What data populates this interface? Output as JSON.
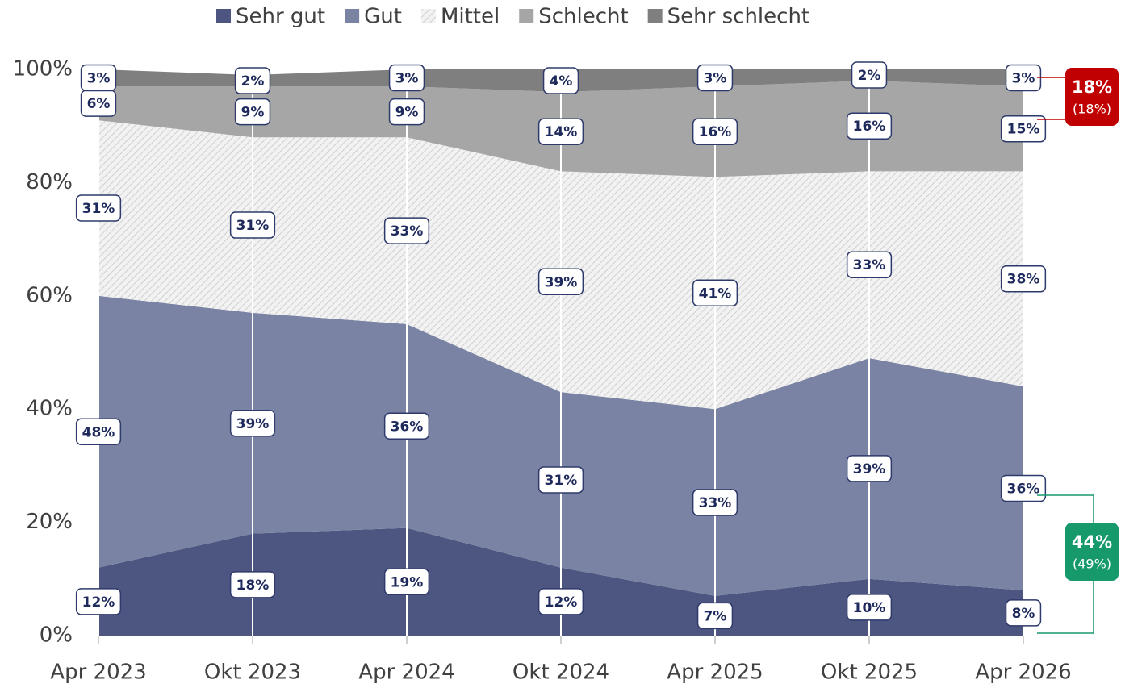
{
  "chart_data": {
    "type": "stacked_area",
    "categories": [
      "Apr 2023",
      "Okt 2023",
      "Apr 2024",
      "Okt 2024",
      "Apr 2025",
      "Okt 2025",
      "Apr 2026"
    ],
    "series": [
      {
        "name": "Sehr gut",
        "color": "#4d5680",
        "values": [
          12,
          18,
          19,
          12,
          7,
          10,
          8
        ],
        "value_labels": [
          "12%",
          "18%",
          "19%",
          "12%",
          "7%",
          "10%",
          "8%"
        ]
      },
      {
        "name": "Gut",
        "color": "#7a83a3",
        "values": [
          48,
          39,
          36,
          31,
          33,
          39,
          36
        ],
        "value_labels": [
          "48%",
          "39%",
          "36%",
          "31%",
          "33%",
          "39%",
          "36%"
        ]
      },
      {
        "name": "Mittel",
        "color": "hatch",
        "values": [
          31,
          31,
          33,
          39,
          41,
          33,
          38
        ],
        "value_labels": [
          "31%",
          "31%",
          "33%",
          "39%",
          "41%",
          "33%",
          "38%"
        ]
      },
      {
        "name": "Schlecht",
        "color": "#a6a6a6",
        "values": [
          6,
          9,
          9,
          14,
          16,
          16,
          15
        ],
        "value_labels": [
          "6%",
          "9%",
          "9%",
          "14%",
          "16%",
          "16%",
          "15%"
        ]
      },
      {
        "name": "Sehr schlecht",
        "color": "#7f7f7f",
        "values": [
          3,
          2,
          3,
          4,
          3,
          2,
          3
        ],
        "value_labels": [
          "3%",
          "2%",
          "3%",
          "4%",
          "3%",
          "2%",
          "3%"
        ]
      }
    ],
    "ylim": [
      0,
      100
    ],
    "yticks": [
      {
        "value": 0,
        "label": "0%"
      },
      {
        "value": 20,
        "label": "20%"
      },
      {
        "value": 40,
        "label": "40%"
      },
      {
        "value": 60,
        "label": "60%"
      },
      {
        "value": 80,
        "label": "80%"
      },
      {
        "value": 100,
        "label": "100%"
      }
    ],
    "legend": "top",
    "annotations": [
      {
        "text": "18%",
        "subtext": "(18%)",
        "color": "#c00000"
      },
      {
        "text": "44%",
        "subtext": "(49%)",
        "color": "#16996b"
      }
    ]
  }
}
